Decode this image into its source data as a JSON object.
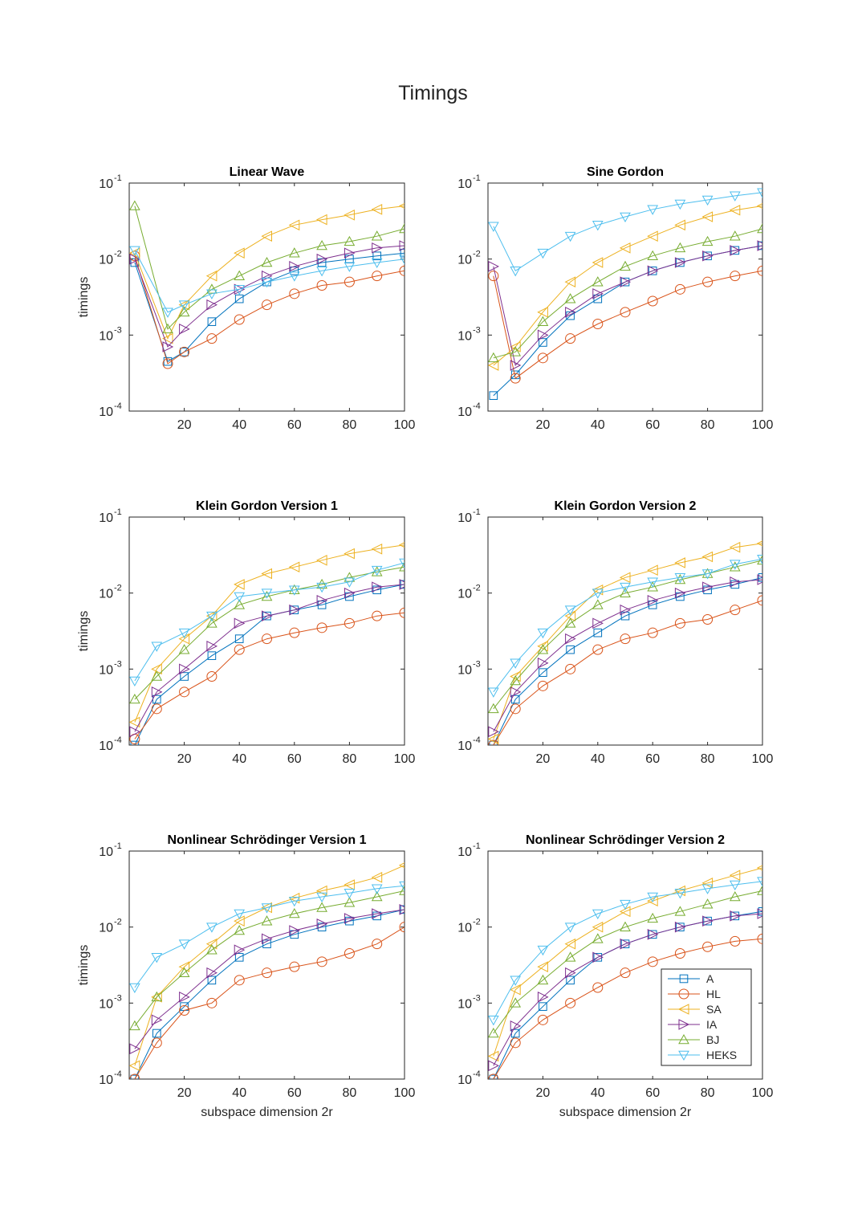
{
  "figure": {
    "title": "Timings"
  },
  "colors": {
    "A": "#0072BD",
    "HL": "#D95319",
    "SA": "#EDB120",
    "IA": "#7E2F8E",
    "BJ": "#77AC30",
    "HEKS": "#4DBEEE"
  },
  "chart_data": [
    {
      "type": "line",
      "title": "Linear Wave",
      "xlabel": "",
      "ylabel": "timings",
      "xlim": [
        0,
        100
      ],
      "xticks": [
        20,
        40,
        60,
        80,
        100
      ],
      "ylim": [
        0.0001,
        0.1
      ],
      "yscale": "log",
      "grid": false,
      "ytick_labels": [
        "10",
        "10",
        "10",
        "10"
      ],
      "ytick_exponents": [
        "-1",
        "-2",
        "-3",
        "-4"
      ],
      "x": [
        2,
        14,
        20,
        30,
        40,
        50,
        60,
        70,
        80,
        90,
        100
      ],
      "series": [
        {
          "name": "A",
          "values": [
            0.009,
            0.00045,
            0.0006,
            0.0015,
            0.003,
            0.005,
            0.007,
            0.009,
            0.01,
            0.011,
            0.012
          ]
        },
        {
          "name": "HL",
          "values": [
            0.011,
            0.00042,
            0.0006,
            0.0009,
            0.0016,
            0.0025,
            0.0035,
            0.0045,
            0.005,
            0.006,
            0.007
          ]
        },
        {
          "name": "SA",
          "values": [
            0.012,
            0.0009,
            0.0025,
            0.006,
            0.012,
            0.02,
            0.028,
            0.033,
            0.038,
            0.045,
            0.05
          ]
        },
        {
          "name": "IA",
          "values": [
            0.01,
            0.0007,
            0.0012,
            0.0025,
            0.004,
            0.006,
            0.008,
            0.01,
            0.012,
            0.014,
            0.015
          ]
        },
        {
          "name": "BJ",
          "values": [
            0.05,
            0.0012,
            0.002,
            0.004,
            0.006,
            0.009,
            0.012,
            0.015,
            0.017,
            0.02,
            0.025
          ]
        },
        {
          "name": "HEKS",
          "values": [
            0.013,
            0.002,
            0.0025,
            0.0035,
            0.004,
            0.005,
            0.006,
            0.007,
            0.008,
            0.009,
            0.01
          ]
        }
      ]
    },
    {
      "type": "line",
      "title": "Sine Gordon",
      "xlabel": "",
      "ylabel": "",
      "xlim": [
        0,
        100
      ],
      "xticks": [
        20,
        40,
        60,
        80,
        100
      ],
      "ylim": [
        0.0001,
        0.1
      ],
      "yscale": "log",
      "grid": false,
      "ytick_labels": [
        "10",
        "10",
        "10",
        "10"
      ],
      "ytick_exponents": [
        "-1",
        "-2",
        "-3",
        "-4"
      ],
      "x": [
        2,
        10,
        20,
        30,
        40,
        50,
        60,
        70,
        80,
        90,
        100
      ],
      "series": [
        {
          "name": "A",
          "values": [
            0.00016,
            0.0003,
            0.0008,
            0.0018,
            0.003,
            0.005,
            0.007,
            0.009,
            0.011,
            0.013,
            0.015
          ]
        },
        {
          "name": "HL",
          "values": [
            0.006,
            0.00027,
            0.0005,
            0.0009,
            0.0014,
            0.002,
            0.0028,
            0.004,
            0.005,
            0.006,
            0.007
          ]
        },
        {
          "name": "SA",
          "values": [
            0.0004,
            0.0007,
            0.002,
            0.005,
            0.009,
            0.014,
            0.02,
            0.028,
            0.036,
            0.044,
            0.05
          ]
        },
        {
          "name": "IA",
          "values": [
            0.008,
            0.0004,
            0.001,
            0.002,
            0.0035,
            0.005,
            0.007,
            0.009,
            0.011,
            0.013,
            0.015
          ]
        },
        {
          "name": "BJ",
          "values": [
            0.0005,
            0.0006,
            0.0015,
            0.003,
            0.005,
            0.008,
            0.011,
            0.014,
            0.017,
            0.02,
            0.025
          ]
        },
        {
          "name": "HEKS",
          "values": [
            0.027,
            0.007,
            0.012,
            0.02,
            0.028,
            0.036,
            0.045,
            0.053,
            0.06,
            0.068,
            0.075
          ]
        }
      ]
    },
    {
      "type": "line",
      "title": "Klein Gordon Version 1",
      "xlabel": "",
      "ylabel": "timings",
      "xlim": [
        0,
        100
      ],
      "xticks": [
        20,
        40,
        60,
        80,
        100
      ],
      "ylim": [
        0.0001,
        0.1
      ],
      "yscale": "log",
      "grid": false,
      "ytick_labels": [
        "10",
        "10",
        "10",
        "10"
      ],
      "ytick_exponents": [
        "-1",
        "-2",
        "-3",
        "-4"
      ],
      "x": [
        2,
        10,
        20,
        30,
        40,
        50,
        60,
        70,
        80,
        90,
        100
      ],
      "series": [
        {
          "name": "A",
          "values": [
            0.0001,
            0.0004,
            0.0008,
            0.0015,
            0.0025,
            0.005,
            0.006,
            0.007,
            0.009,
            0.011,
            0.013
          ]
        },
        {
          "name": "HL",
          "values": [
            0.00012,
            0.0003,
            0.0005,
            0.0008,
            0.0018,
            0.0025,
            0.003,
            0.0035,
            0.004,
            0.005,
            0.0055
          ]
        },
        {
          "name": "SA",
          "values": [
            0.0002,
            0.001,
            0.0025,
            0.005,
            0.013,
            0.018,
            0.022,
            0.027,
            0.033,
            0.038,
            0.043
          ]
        },
        {
          "name": "IA",
          "values": [
            0.00015,
            0.0005,
            0.001,
            0.002,
            0.004,
            0.005,
            0.006,
            0.008,
            0.01,
            0.012,
            0.013
          ]
        },
        {
          "name": "BJ",
          "values": [
            0.0004,
            0.0008,
            0.0018,
            0.004,
            0.007,
            0.009,
            0.011,
            0.013,
            0.016,
            0.019,
            0.022
          ]
        },
        {
          "name": "HEKS",
          "values": [
            0.0007,
            0.002,
            0.003,
            0.005,
            0.009,
            0.01,
            0.011,
            0.012,
            0.014,
            0.02,
            0.025
          ]
        }
      ]
    },
    {
      "type": "line",
      "title": "Klein Gordon Version 2",
      "xlabel": "",
      "ylabel": "",
      "xlim": [
        0,
        100
      ],
      "xticks": [
        20,
        40,
        60,
        80,
        100
      ],
      "ylim": [
        0.0001,
        0.1
      ],
      "yscale": "log",
      "grid": false,
      "ytick_labels": [
        "10",
        "10",
        "10",
        "10"
      ],
      "ytick_exponents": [
        "-1",
        "-2",
        "-3",
        "-4"
      ],
      "x": [
        2,
        10,
        20,
        30,
        40,
        50,
        60,
        70,
        80,
        90,
        100
      ],
      "series": [
        {
          "name": "A",
          "values": [
            0.0001,
            0.0004,
            0.0009,
            0.0018,
            0.003,
            0.005,
            0.007,
            0.009,
            0.011,
            0.013,
            0.016
          ]
        },
        {
          "name": "HL",
          "values": [
            0.0001,
            0.0003,
            0.0006,
            0.001,
            0.0018,
            0.0025,
            0.003,
            0.004,
            0.0045,
            0.006,
            0.008
          ]
        },
        {
          "name": "SA",
          "values": [
            0.00012,
            0.0008,
            0.002,
            0.005,
            0.011,
            0.016,
            0.02,
            0.025,
            0.03,
            0.04,
            0.045
          ]
        },
        {
          "name": "IA",
          "values": [
            0.00015,
            0.0005,
            0.0012,
            0.0025,
            0.004,
            0.006,
            0.008,
            0.01,
            0.012,
            0.014,
            0.015
          ]
        },
        {
          "name": "BJ",
          "values": [
            0.0003,
            0.0007,
            0.0018,
            0.004,
            0.007,
            0.01,
            0.012,
            0.015,
            0.018,
            0.022,
            0.027
          ]
        },
        {
          "name": "HEKS",
          "values": [
            0.0005,
            0.0012,
            0.003,
            0.006,
            0.01,
            0.012,
            0.014,
            0.016,
            0.018,
            0.024,
            0.028
          ]
        }
      ]
    },
    {
      "type": "line",
      "title": "Nonlinear Schrödinger Version 1",
      "xlabel": "subspace dimension 2r",
      "ylabel": "timings",
      "xlim": [
        0,
        100
      ],
      "xticks": [
        20,
        40,
        60,
        80,
        100
      ],
      "ylim": [
        0.0001,
        0.1
      ],
      "yscale": "log",
      "grid": false,
      "ytick_labels": [
        "10",
        "10",
        "10",
        "10"
      ],
      "ytick_exponents": [
        "-1",
        "-2",
        "-3",
        "-4"
      ],
      "x": [
        2,
        10,
        20,
        30,
        40,
        50,
        60,
        70,
        80,
        90,
        100
      ],
      "series": [
        {
          "name": "A",
          "values": [
            0.0001,
            0.0004,
            0.0009,
            0.002,
            0.004,
            0.006,
            0.008,
            0.01,
            0.012,
            0.014,
            0.017
          ]
        },
        {
          "name": "HL",
          "values": [
            0.0001,
            0.0003,
            0.0008,
            0.001,
            0.002,
            0.0025,
            0.003,
            0.0035,
            0.0045,
            0.006,
            0.01
          ]
        },
        {
          "name": "SA",
          "values": [
            0.00015,
            0.0012,
            0.003,
            0.006,
            0.012,
            0.018,
            0.024,
            0.03,
            0.036,
            0.045,
            0.065
          ]
        },
        {
          "name": "IA",
          "values": [
            0.00025,
            0.0006,
            0.0012,
            0.0025,
            0.005,
            0.007,
            0.009,
            0.011,
            0.013,
            0.015,
            0.017
          ]
        },
        {
          "name": "BJ",
          "values": [
            0.0005,
            0.0012,
            0.0025,
            0.005,
            0.009,
            0.012,
            0.015,
            0.018,
            0.021,
            0.025,
            0.03
          ]
        },
        {
          "name": "HEKS",
          "values": [
            0.0016,
            0.004,
            0.006,
            0.01,
            0.015,
            0.018,
            0.022,
            0.025,
            0.028,
            0.032,
            0.035
          ]
        }
      ]
    },
    {
      "type": "line",
      "title": "Nonlinear Schrödinger Version 2",
      "xlabel": "subspace dimension 2r",
      "ylabel": "",
      "xlim": [
        0,
        100
      ],
      "xticks": [
        20,
        40,
        60,
        80,
        100
      ],
      "ylim": [
        0.0001,
        0.1
      ],
      "yscale": "log",
      "grid": false,
      "ytick_labels": [
        "10",
        "10",
        "10",
        "10"
      ],
      "ytick_exponents": [
        "-1",
        "-2",
        "-3",
        "-4"
      ],
      "legend": {
        "position": "lower-right",
        "entries": [
          "A",
          "HL",
          "SA",
          "IA",
          "BJ",
          "HEKS"
        ]
      },
      "x": [
        2,
        10,
        20,
        30,
        40,
        50,
        60,
        70,
        80,
        90,
        100
      ],
      "series": [
        {
          "name": "A",
          "values": [
            0.0001,
            0.0004,
            0.0009,
            0.002,
            0.004,
            0.006,
            0.008,
            0.01,
            0.012,
            0.014,
            0.016
          ]
        },
        {
          "name": "HL",
          "values": [
            0.0001,
            0.0003,
            0.0006,
            0.001,
            0.0016,
            0.0025,
            0.0035,
            0.0045,
            0.0055,
            0.0065,
            0.007
          ]
        },
        {
          "name": "SA",
          "values": [
            0.0002,
            0.0015,
            0.003,
            0.006,
            0.01,
            0.016,
            0.022,
            0.03,
            0.038,
            0.048,
            0.06
          ]
        },
        {
          "name": "IA",
          "values": [
            0.00015,
            0.0005,
            0.0012,
            0.0025,
            0.004,
            0.006,
            0.008,
            0.01,
            0.012,
            0.014,
            0.015
          ]
        },
        {
          "name": "BJ",
          "values": [
            0.0004,
            0.001,
            0.002,
            0.004,
            0.007,
            0.01,
            0.013,
            0.016,
            0.02,
            0.025,
            0.03
          ]
        },
        {
          "name": "HEKS",
          "values": [
            0.0006,
            0.002,
            0.005,
            0.01,
            0.015,
            0.02,
            0.025,
            0.028,
            0.032,
            0.036,
            0.04
          ]
        }
      ]
    }
  ]
}
